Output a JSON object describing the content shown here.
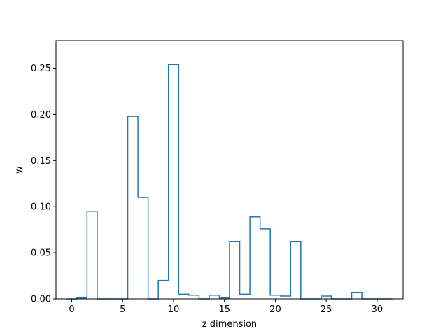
{
  "chart_data": {
    "type": "step",
    "title": "",
    "xlabel": "z dimension",
    "ylabel": "w",
    "xlim": [
      -1.55,
      32.55
    ],
    "ylim": [
      0,
      0.28
    ],
    "x_ticks": [
      0,
      5,
      10,
      15,
      20,
      25,
      30
    ],
    "x_tick_labels": [
      "0",
      "5",
      "10",
      "15",
      "20",
      "25",
      "30"
    ],
    "y_ticks": [
      0.0,
      0.05,
      0.1,
      0.15,
      0.2,
      0.25
    ],
    "y_tick_labels": [
      "0.00",
      "0.05",
      "0.10",
      "0.15",
      "0.20",
      "0.25"
    ],
    "grid": false,
    "series": [
      {
        "color": "#1f77b4",
        "x": [
          0,
          1,
          2,
          3,
          4,
          5,
          6,
          7,
          8,
          9,
          10,
          11,
          12,
          13,
          14,
          15,
          16,
          17,
          18,
          19,
          20,
          21,
          22,
          23,
          24,
          25,
          26,
          27,
          28,
          29,
          30,
          31
        ],
        "values": [
          0.0,
          0.001,
          0.095,
          0.0,
          0.0,
          0.0,
          0.198,
          0.11,
          0.0,
          0.02,
          0.254,
          0.005,
          0.004,
          0.0,
          0.004,
          0.001,
          0.062,
          0.005,
          0.089,
          0.076,
          0.004,
          0.003,
          0.062,
          0.0,
          0.0,
          0.003,
          0.0,
          0.0,
          0.007,
          0.0,
          0.0,
          0.0
        ]
      }
    ]
  }
}
